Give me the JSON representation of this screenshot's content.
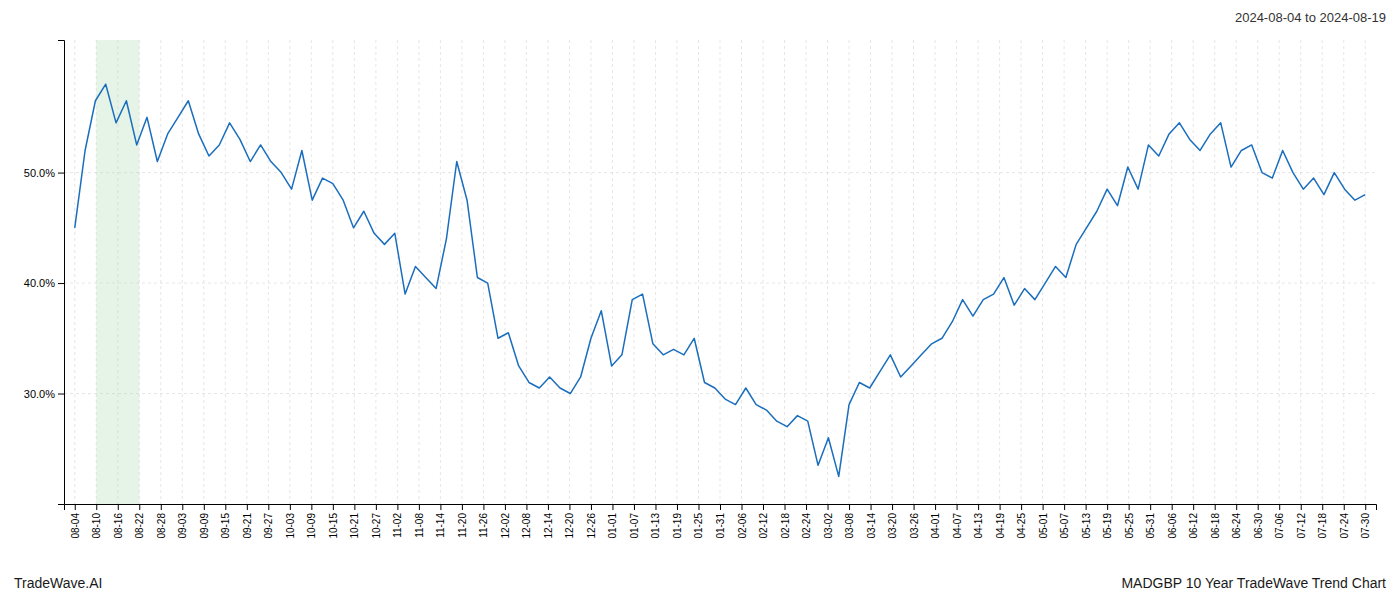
{
  "chart_data": {
    "type": "line",
    "title": "MADGBP 10 Year TradeWave Trend Chart",
    "subtitle": "2024-08-04 to 2024-08-19",
    "annotations": [
      "TradeWave.AI"
    ],
    "color": "#1a6ebd",
    "grid": true,
    "shade": {
      "x": [
        1,
        3
      ],
      "color": "#c8e6c9"
    },
    "xlim": [
      -0.5,
      60.5
    ],
    "xticks": [
      {
        "value": 0,
        "label": "08-04"
      },
      {
        "value": 1,
        "label": "08-10"
      },
      {
        "value": 2,
        "label": "08-16"
      },
      {
        "value": 3,
        "label": "08-22"
      },
      {
        "value": 4,
        "label": "08-28"
      },
      {
        "value": 5,
        "label": "09-03"
      },
      {
        "value": 6,
        "label": "09-09"
      },
      {
        "value": 7,
        "label": "09-15"
      },
      {
        "value": 8,
        "label": "09-21"
      },
      {
        "value": 9,
        "label": "09-27"
      },
      {
        "value": 10,
        "label": "10-03"
      },
      {
        "value": 11,
        "label": "10-09"
      },
      {
        "value": 12,
        "label": "10-15"
      },
      {
        "value": 13,
        "label": "10-21"
      },
      {
        "value": 14,
        "label": "10-27"
      },
      {
        "value": 15,
        "label": "11-02"
      },
      {
        "value": 16,
        "label": "11-08"
      },
      {
        "value": 17,
        "label": "11-14"
      },
      {
        "value": 18,
        "label": "11-20"
      },
      {
        "value": 19,
        "label": "11-26"
      },
      {
        "value": 20,
        "label": "12-02"
      },
      {
        "value": 21,
        "label": "12-08"
      },
      {
        "value": 22,
        "label": "12-14"
      },
      {
        "value": 23,
        "label": "12-20"
      },
      {
        "value": 24,
        "label": "12-26"
      },
      {
        "value": 25,
        "label": "01-01"
      },
      {
        "value": 26,
        "label": "01-07"
      },
      {
        "value": 27,
        "label": "01-13"
      },
      {
        "value": 28,
        "label": "01-19"
      },
      {
        "value": 29,
        "label": "01-25"
      },
      {
        "value": 30,
        "label": "01-31"
      },
      {
        "value": 31,
        "label": "02-06"
      },
      {
        "value": 32,
        "label": "02-12"
      },
      {
        "value": 33,
        "label": "02-18"
      },
      {
        "value": 34,
        "label": "02-24"
      },
      {
        "value": 35,
        "label": "03-02"
      },
      {
        "value": 36,
        "label": "03-08"
      },
      {
        "value": 37,
        "label": "03-14"
      },
      {
        "value": 38,
        "label": "03-20"
      },
      {
        "value": 39,
        "label": "03-26"
      },
      {
        "value": 40,
        "label": "04-01"
      },
      {
        "value": 41,
        "label": "04-07"
      },
      {
        "value": 42,
        "label": "04-13"
      },
      {
        "value": 43,
        "label": "04-19"
      },
      {
        "value": 44,
        "label": "04-25"
      },
      {
        "value": 45,
        "label": "05-01"
      },
      {
        "value": 46,
        "label": "05-07"
      },
      {
        "value": 47,
        "label": "05-13"
      },
      {
        "value": 48,
        "label": "05-19"
      },
      {
        "value": 49,
        "label": "05-25"
      },
      {
        "value": 50,
        "label": "05-31"
      },
      {
        "value": 51,
        "label": "06-06"
      },
      {
        "value": 52,
        "label": "06-12"
      },
      {
        "value": 53,
        "label": "06-18"
      },
      {
        "value": 54,
        "label": "06-24"
      },
      {
        "value": 55,
        "label": "06-30"
      },
      {
        "value": 56,
        "label": "07-06"
      },
      {
        "value": 57,
        "label": "07-12"
      },
      {
        "value": 58,
        "label": "07-18"
      },
      {
        "value": 59,
        "label": "07-24"
      },
      {
        "value": 60,
        "label": "07-30"
      }
    ],
    "ylim": [
      20,
      62
    ],
    "yticks": [
      {
        "value": 30,
        "label": "30.0%"
      },
      {
        "value": 40,
        "label": "40.0%"
      },
      {
        "value": 50,
        "label": "50.0%"
      }
    ],
    "x": [
      0,
      0.48,
      0.96,
      1.44,
      1.92,
      2.4,
      2.88,
      3.36,
      3.84,
      4.32,
      4.8,
      5.28,
      5.76,
      6.24,
      6.72,
      7.2,
      7.68,
      8.16,
      8.64,
      9.12,
      9.6,
      10.08,
      10.56,
      11.04,
      11.52,
      12,
      12.48,
      12.96,
      13.44,
      13.92,
      14.4,
      14.88,
      15.36,
      15.84,
      16.32,
      16.8,
      17.28,
      17.76,
      18.24,
      18.72,
      19.2,
      19.68,
      20.16,
      20.64,
      21.12,
      21.6,
      22.08,
      22.56,
      23.04,
      23.52,
      24,
      24.48,
      24.96,
      25.44,
      25.92,
      26.4,
      26.88,
      27.36,
      27.84,
      28.32,
      28.8,
      29.28,
      29.76,
      30.24,
      30.72,
      31.2,
      31.68,
      32.16,
      32.64,
      33.12,
      33.6,
      34.08,
      34.56,
      35.04,
      35.52,
      36,
      36.48,
      36.96,
      37.44,
      37.92,
      38.4,
      38.88,
      39.36,
      39.84,
      40.32,
      40.8,
      41.28,
      41.76,
      42.24,
      42.72,
      43.2,
      43.68,
      44.16,
      44.64,
      45.12,
      45.6,
      46.08,
      46.56,
      47.04,
      47.52,
      48,
      48.48,
      48.96,
      49.44,
      49.92,
      50.4,
      50.88,
      51.36,
      51.84,
      52.32,
      52.8,
      53.28,
      53.76,
      54.24,
      54.72,
      55.2,
      55.68,
      56.16,
      56.64,
      57.12,
      57.6,
      58.08,
      58.56,
      59.04,
      59.52,
      60
    ],
    "values": [
      45.0,
      52.0,
      56.5,
      58.0,
      54.5,
      56.5,
      52.5,
      55.0,
      51.0,
      53.5,
      55.0,
      56.5,
      53.5,
      51.5,
      52.5,
      54.5,
      53.0,
      51.0,
      52.5,
      51.0,
      50.0,
      48.5,
      52.0,
      47.5,
      49.5,
      49.0,
      47.5,
      45.0,
      46.5,
      44.5,
      43.5,
      44.5,
      39.0,
      41.5,
      40.5,
      39.5,
      44.0,
      51.0,
      47.5,
      40.5,
      40.0,
      35.0,
      35.5,
      32.5,
      31.0,
      30.5,
      31.5,
      30.5,
      30.0,
      31.5,
      35.0,
      37.5,
      32.5,
      33.5,
      38.5,
      39.0,
      34.5,
      33.5,
      34.0,
      33.5,
      35.0,
      31.0,
      30.5,
      29.5,
      29.0,
      30.5,
      29.0,
      28.5,
      27.5,
      27.0,
      28.0,
      27.5,
      23.5,
      26.0,
      22.5,
      29.0,
      31.0,
      30.5,
      32.0,
      33.5,
      31.5,
      32.5,
      33.5,
      34.5,
      35.0,
      36.5,
      38.5,
      37.0,
      38.5,
      39.0,
      40.5,
      38.0,
      39.5,
      38.5,
      40.0,
      41.5,
      40.5,
      43.5,
      45.0,
      46.5,
      48.5,
      47.0,
      50.5,
      48.5,
      52.5,
      51.5,
      53.5,
      54.5,
      53.0,
      52.0,
      53.5,
      54.5,
      50.5,
      52.0,
      52.5,
      50.0,
      49.5,
      52.0,
      50.0,
      48.5,
      49.5,
      48.0,
      50.0,
      48.5,
      47.5,
      48.0
    ]
  }
}
